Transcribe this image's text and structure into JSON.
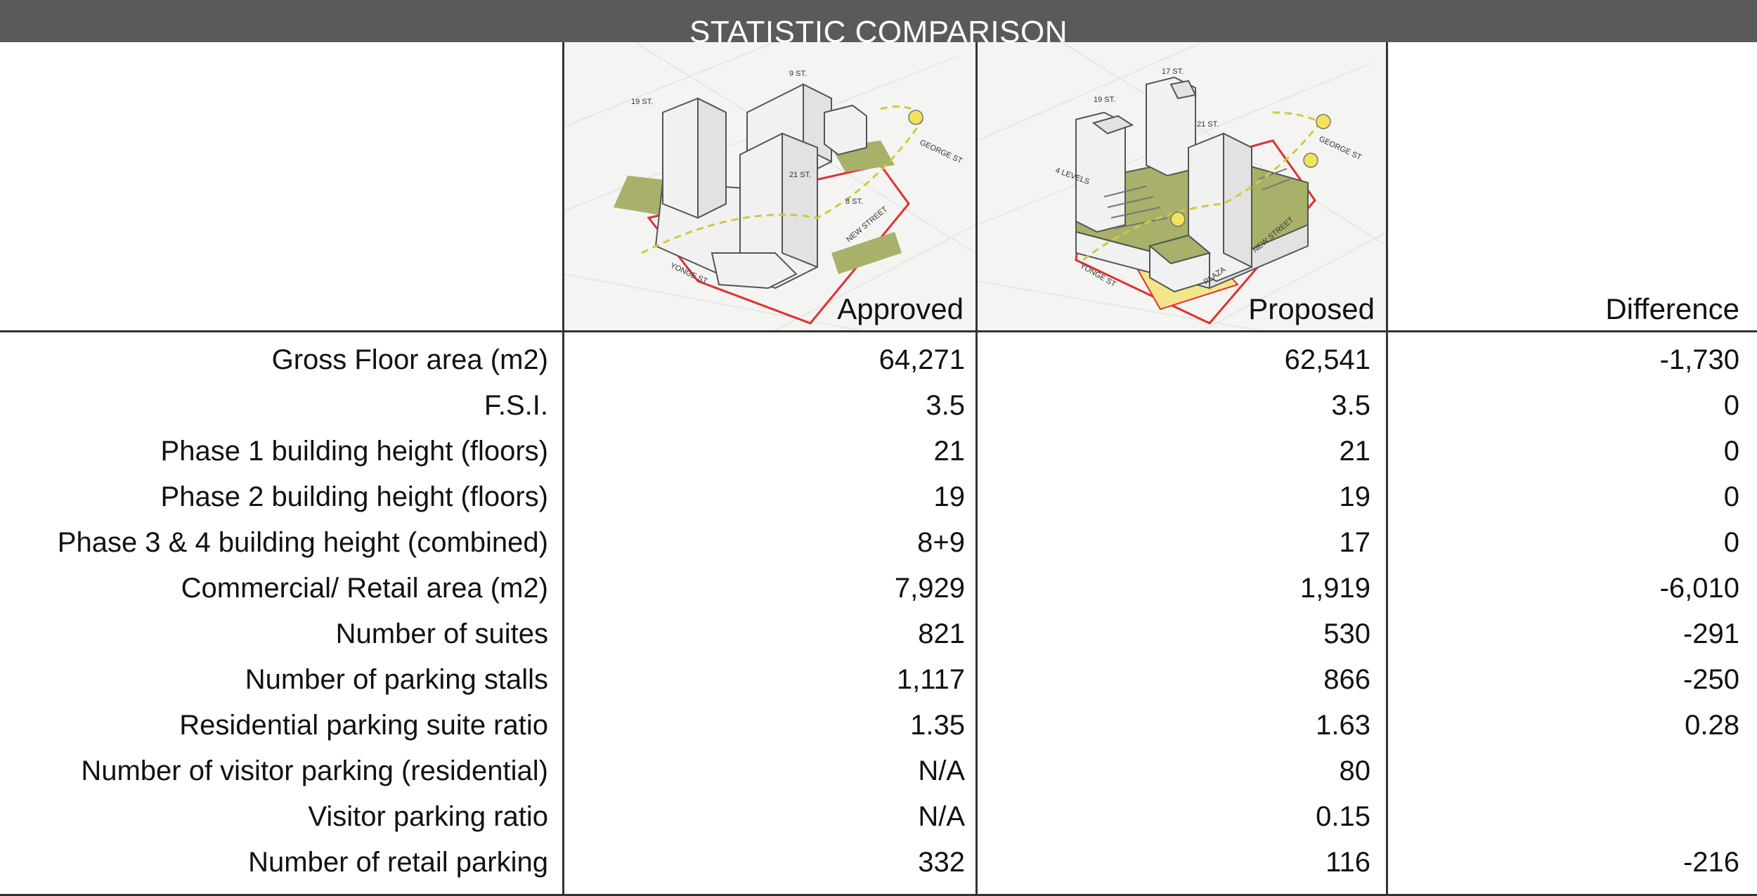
{
  "title": "STATISTIC COMPARISON",
  "columns": {
    "approved": "Approved",
    "proposed": "Proposed",
    "difference": "Difference"
  },
  "images": {
    "approved": {
      "icon": "approved-massing-diagram",
      "street_labels": [
        "9 ST.",
        "19 ST.",
        "21 ST.",
        "8 ST.",
        "YONGE ST",
        "NEW STREET",
        "GEORGE ST"
      ]
    },
    "proposed": {
      "icon": "proposed-massing-diagram",
      "street_labels": [
        "17 ST.",
        "19 ST.",
        "21 ST.",
        "4 LEVELS",
        "YONGE ST",
        "NEW STREET",
        "GEORGE ST",
        "PLAZA"
      ]
    }
  },
  "colors": {
    "title_bar": "#5a5a5a",
    "green_roof": "#a8b06a",
    "site_line": "#e03030",
    "sun": "#f2e35a"
  },
  "rows": [
    {
      "label": "Gross Floor area (m2)",
      "approved": "64,271",
      "proposed": "62,541",
      "difference": "-1,730"
    },
    {
      "label": "F.S.I.",
      "approved": "3.5",
      "proposed": "3.5",
      "difference": "0"
    },
    {
      "label": "Phase 1 building height (floors)",
      "approved": "21",
      "proposed": "21",
      "difference": "0"
    },
    {
      "label": "Phase 2 building height (floors)",
      "approved": "19",
      "proposed": "19",
      "difference": "0"
    },
    {
      "label": "Phase 3 & 4 building height (combined)",
      "approved": "8+9",
      "proposed": "17",
      "difference": "0"
    },
    {
      "label": "Commercial/ Retail area (m2)",
      "approved": "7,929",
      "proposed": "1,919",
      "difference": "-6,010"
    },
    {
      "label": "Number of suites",
      "approved": "821",
      "proposed": "530",
      "difference": "-291"
    },
    {
      "label": "Number of parking stalls",
      "approved": "1,117",
      "proposed": "866",
      "difference": "-250"
    },
    {
      "label": "Residential parking suite ratio",
      "approved": "1.35",
      "proposed": "1.63",
      "difference": "0.28"
    },
    {
      "label": "Number of visitor parking (residential)",
      "approved": "N/A",
      "proposed": "80",
      "difference": ""
    },
    {
      "label": "Visitor parking ratio",
      "approved": "N/A",
      "proposed": "0.15",
      "difference": ""
    },
    {
      "label": "Number of retail parking",
      "approved": "332",
      "proposed": "116",
      "difference": "-216"
    }
  ]
}
